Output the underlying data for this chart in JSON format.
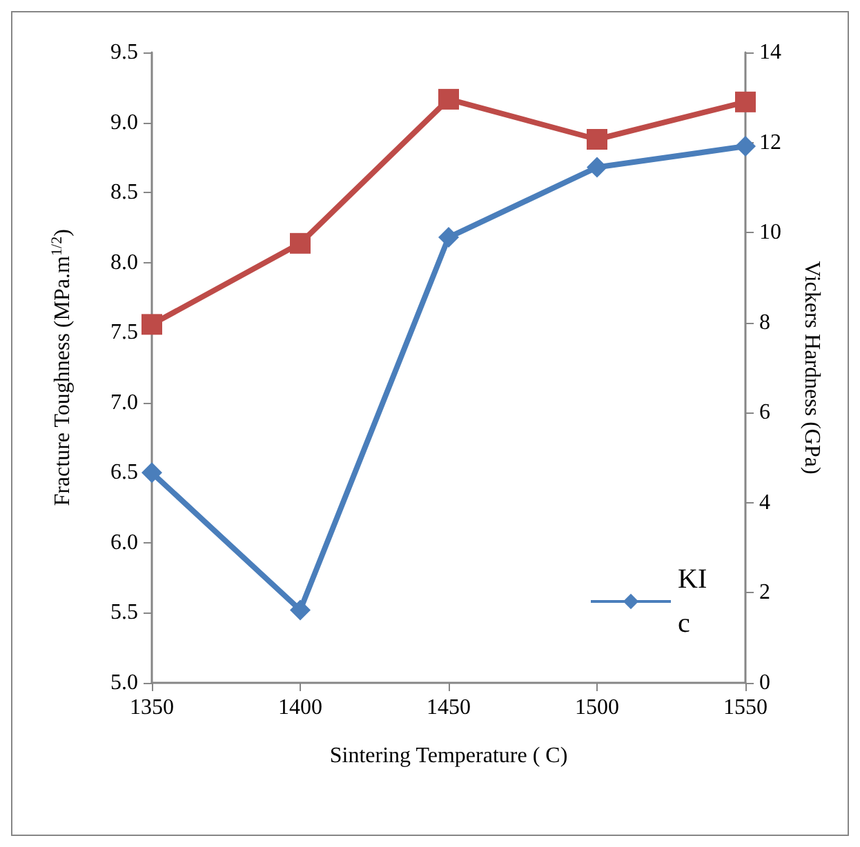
{
  "chart_data": {
    "type": "line",
    "xlabel": "Sintering Temperature ( C)",
    "ylabel": "Fracture Toughness (MPa.m$^{1/2}$)",
    "y2label": "Vickers Hardness (GPa)",
    "x": [
      1350,
      1400,
      1450,
      1500,
      1550
    ],
    "series": [
      {
        "name": "KIc",
        "color": "#4a7ebb",
        "marker": "diamond",
        "values": [
          6.5,
          5.52,
          8.18,
          8.68,
          8.83
        ]
      },
      {
        "color": "#be4b48",
        "marker": "square",
        "axis": "y2",
        "values": [
          7.96,
          9.76,
          12.96,
          12.07,
          12.9
        ]
      }
    ],
    "xlim": [
      1350,
      1550
    ],
    "xticks": [
      1350,
      1400,
      1450,
      1500,
      1550
    ],
    "ylim": [
      5.0,
      9.5
    ],
    "yticks": [
      {
        "value": 5.0,
        "label": "5.0"
      },
      {
        "value": 5.5,
        "label": "5.5"
      },
      {
        "value": 6.0,
        "label": "6.0"
      },
      {
        "value": 6.5,
        "label": "6.5"
      },
      {
        "value": 7.0,
        "label": "7.0"
      },
      {
        "value": 7.5,
        "label": "7.5"
      },
      {
        "value": 8.0,
        "label": "8.0"
      },
      {
        "value": 8.5,
        "label": "8.5"
      },
      {
        "value": 9.0,
        "label": "9.0"
      },
      {
        "value": 9.5,
        "label": "9.5"
      }
    ],
    "y2lim": [
      0,
      14
    ],
    "y2ticks": [
      0,
      2,
      4,
      6,
      8,
      10,
      12,
      14
    ],
    "grid": false,
    "legend": "right",
    "line_style": "solid"
  }
}
